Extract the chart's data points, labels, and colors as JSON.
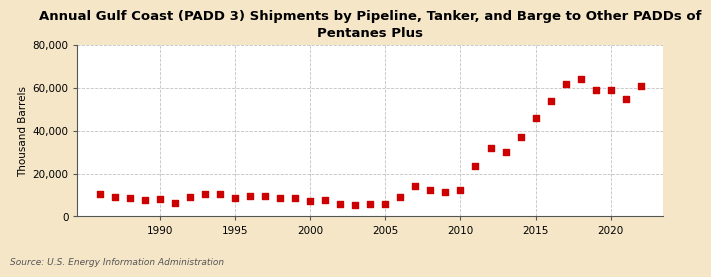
{
  "title": "Annual Gulf Coast (PADD 3) Shipments by Pipeline, Tanker, and Barge to Other PADDs of\nPentanes Plus",
  "ylabel": "Thousand Barrels",
  "source": "Source: U.S. Energy Information Administration",
  "background_color": "#f5e6c8",
  "plot_bg_color": "#ffffff",
  "marker_color": "#cc0000",
  "years": [
    1986,
    1987,
    1988,
    1989,
    1990,
    1991,
    1992,
    1993,
    1994,
    1995,
    1996,
    1997,
    1998,
    1999,
    2000,
    2001,
    2002,
    2003,
    2004,
    2005,
    2006,
    2007,
    2008,
    2009,
    2010,
    2011,
    2012,
    2013,
    2014,
    2015,
    2016,
    2017,
    2018,
    2019,
    2020,
    2021,
    2022
  ],
  "values": [
    10500,
    9000,
    8500,
    7500,
    8000,
    6500,
    9000,
    10500,
    10500,
    8500,
    9500,
    9500,
    8500,
    8500,
    7000,
    7500,
    6000,
    5500,
    6000,
    6000,
    9000,
    14000,
    12500,
    11500,
    12500,
    23500,
    32000,
    30000,
    37000,
    46000,
    54000,
    62000,
    64000,
    59000,
    59000,
    55000,
    61000
  ],
  "ylim": [
    0,
    80000
  ],
  "xlim": [
    1984.5,
    2023.5
  ],
  "yticks": [
    0,
    20000,
    40000,
    60000,
    80000
  ],
  "xticks": [
    1990,
    1995,
    2000,
    2005,
    2010,
    2015,
    2020
  ],
  "title_fontsize": 9.5,
  "ylabel_fontsize": 7.5,
  "tick_fontsize": 7.5,
  "source_fontsize": 6.5,
  "marker_size": 15
}
